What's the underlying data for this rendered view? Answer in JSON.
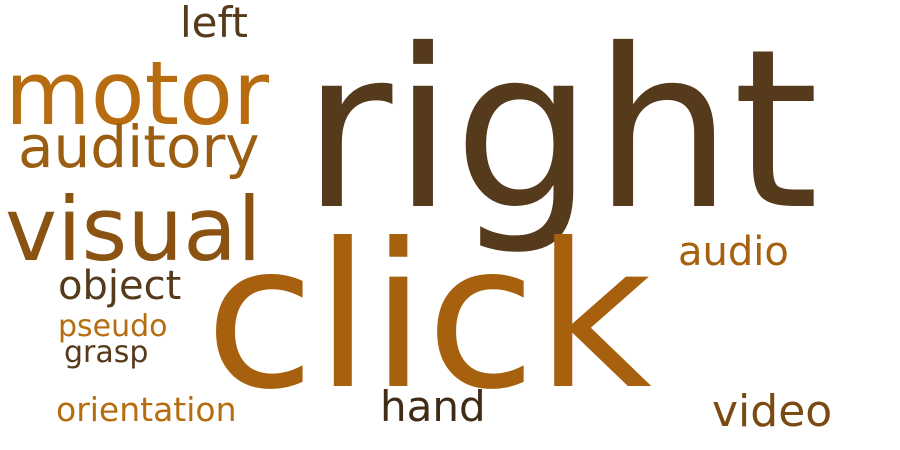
{
  "words": [
    {
      "text": "right",
      "color": "#553a1b"
    },
    {
      "text": "click",
      "color": "#a6600e"
    },
    {
      "text": "visual",
      "color": "#8a5312"
    },
    {
      "text": "motor",
      "color": "#b76d0f"
    },
    {
      "text": "auditory",
      "color": "#9a5d12"
    },
    {
      "text": "left",
      "color": "#553a1b"
    },
    {
      "text": "object",
      "color": "#553a1b"
    },
    {
      "text": "pseudo",
      "color": "#b76d0f"
    },
    {
      "text": "grasp",
      "color": "#553a1b"
    },
    {
      "text": "orientation",
      "color": "#b76d0f"
    },
    {
      "text": "hand",
      "color": "#3f2b16"
    },
    {
      "text": "audio",
      "color": "#a6600e"
    },
    {
      "text": "video",
      "color": "#7a4a12"
    }
  ]
}
